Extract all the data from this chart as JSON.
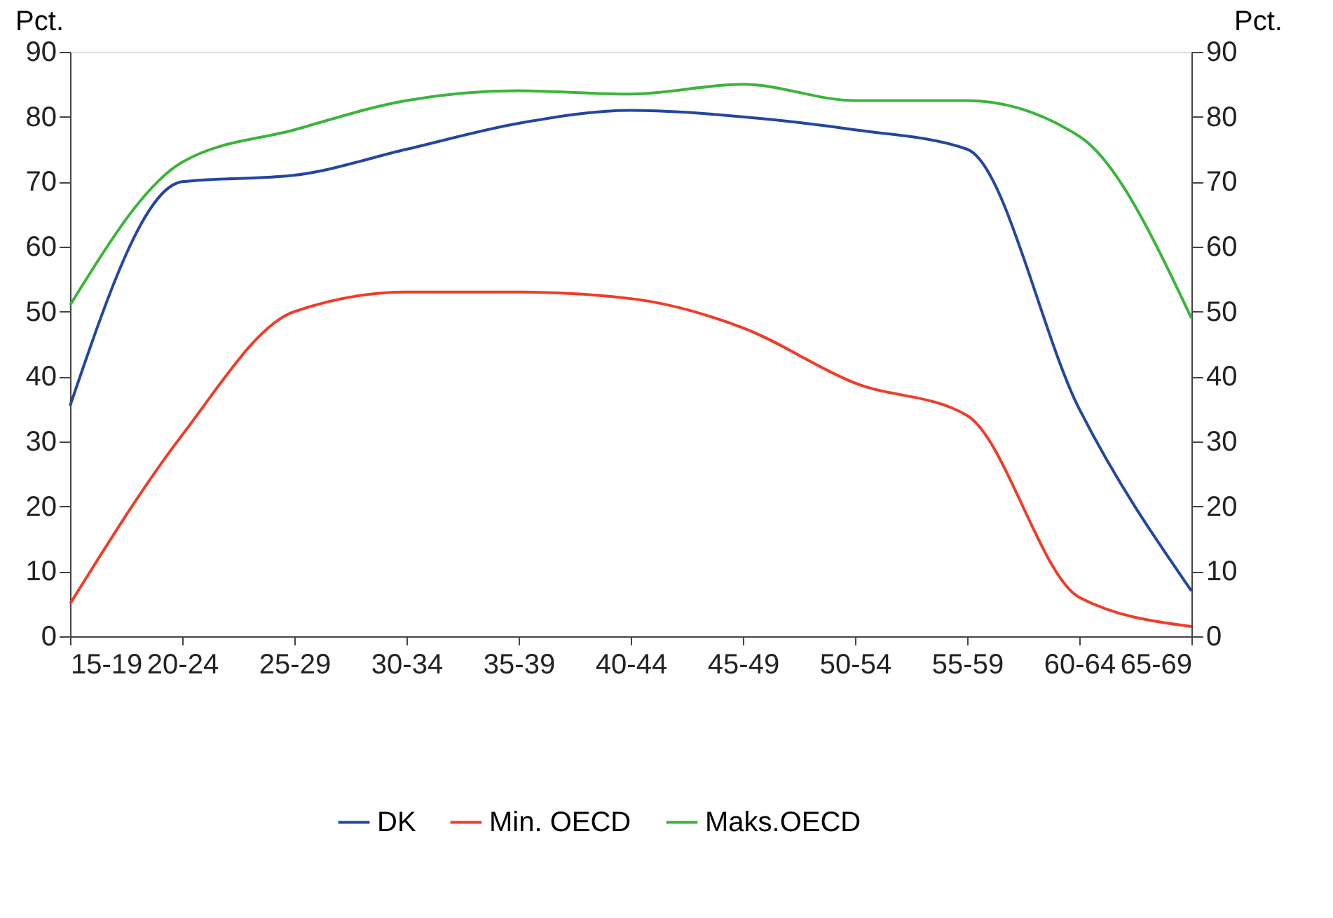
{
  "chart_data": {
    "type": "line",
    "ylabel": "Pct.",
    "y2label": "Pct.",
    "categories": [
      "15-19",
      "20-24",
      "25-29",
      "30-34",
      "35-39",
      "40-44",
      "45-49",
      "50-54",
      "55-59",
      "60-64",
      "65-69"
    ],
    "series": [
      {
        "name": "DK",
        "color": "#2346a0",
        "values": [
          35.5,
          70,
          71,
          75,
          79,
          81,
          80,
          78,
          75,
          35,
          7
        ]
      },
      {
        "name": "Min. OECD",
        "color": "#f03c28",
        "values": [
          5,
          31,
          50,
          53,
          53,
          52,
          47.5,
          39,
          34,
          6,
          1.5
        ]
      },
      {
        "name": "Maks.OECD",
        "color": "#3cb43c",
        "values": [
          51,
          73,
          78,
          82.5,
          84,
          83.5,
          85,
          82.5,
          82.5,
          77,
          49
        ]
      }
    ],
    "ylim": [
      0,
      90
    ],
    "yticks": [
      0,
      10,
      20,
      30,
      40,
      50,
      60,
      70,
      80,
      90
    ],
    "y2lim": [
      0,
      90
    ],
    "y2ticks": [
      0,
      10,
      20,
      30,
      40,
      50,
      60,
      70,
      80,
      90
    ],
    "grid": false,
    "legend": "bottom",
    "marker": "none",
    "line_style": "solid"
  }
}
